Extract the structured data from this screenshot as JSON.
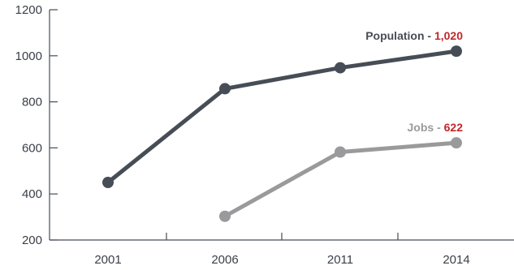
{
  "chart_data": {
    "type": "line",
    "x": [
      2001,
      2006,
      2011,
      2014
    ],
    "ylim": [
      200,
      1200
    ],
    "yticks": [
      200,
      400,
      600,
      800,
      1000,
      1200
    ],
    "grid": false,
    "legend": "none",
    "series": [
      {
        "name": "Population",
        "color": "#474d56",
        "values": [
          450,
          857,
          948,
          1020
        ],
        "label_value": "1,020"
      },
      {
        "name": "Jobs",
        "color": "#9a9a9c",
        "values": [
          null,
          303,
          582,
          622
        ],
        "label_value": "622"
      }
    ],
    "label_separator": " - ",
    "label_value_color": "#c1272d",
    "axis_color": "#474d56"
  }
}
